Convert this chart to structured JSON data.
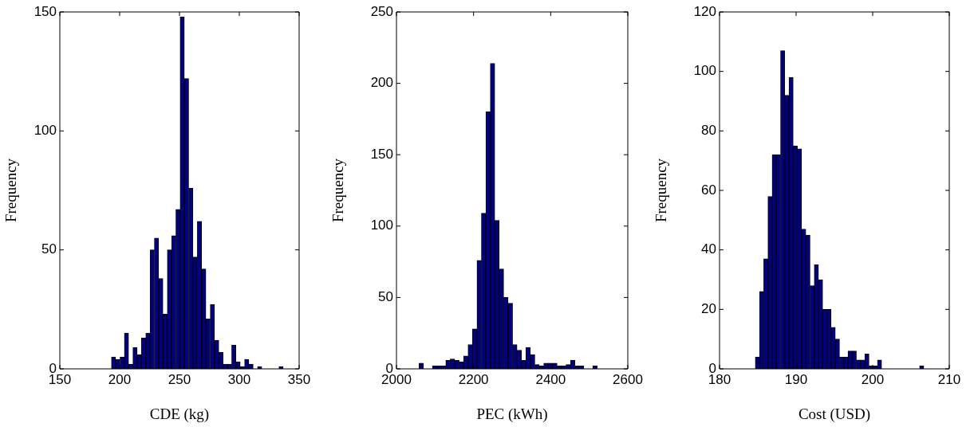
{
  "chart_data": [
    {
      "type": "histogram",
      "xlabel": "CDE (kg)",
      "ylabel": "Frequency",
      "color": "#000080",
      "xlim": [
        150,
        350
      ],
      "xticks": [
        150,
        200,
        250,
        300,
        350
      ],
      "ylim": [
        0,
        150
      ],
      "yticks": [
        0,
        50,
        100,
        150
      ],
      "bins": [
        193.1,
        196.7,
        200.3,
        203.9,
        207.5,
        211.1,
        214.6,
        218.2,
        221.8,
        225.4,
        229.0,
        232.6,
        236.2,
        239.8,
        243.4,
        247.0,
        250.5,
        254.1,
        257.7,
        261.3,
        264.9,
        268.5,
        272.1,
        275.7,
        279.3,
        282.9,
        286.4,
        290.0,
        293.6,
        297.2,
        300.8,
        304.4,
        308.0,
        311.6,
        315.2,
        318.8,
        322.3,
        325.9,
        329.5,
        333.1,
        336.7
      ],
      "values": [
        5,
        4,
        5,
        15,
        2,
        9,
        6,
        13,
        15,
        50,
        55,
        38,
        23,
        50,
        56,
        67,
        148,
        122,
        76,
        47,
        62,
        42,
        21,
        27,
        12,
        7,
        2,
        2,
        10,
        3,
        1,
        4,
        2,
        0,
        1,
        0,
        0,
        0,
        0,
        1
      ]
    },
    {
      "type": "histogram",
      "xlabel": "PEC (kWh)",
      "ylabel": "Frequency",
      "color": "#000080",
      "xlim": [
        2000,
        2600
      ],
      "xticks": [
        2000,
        2200,
        2400,
        2600
      ],
      "ylim": [
        0,
        250
      ],
      "yticks": [
        0,
        50,
        100,
        150,
        200,
        250
      ],
      "bins": [
        2058.6,
        2070.2,
        2081.7,
        2093.3,
        2104.8,
        2116.4,
        2127.9,
        2139.5,
        2151.0,
        2162.6,
        2174.1,
        2185.7,
        2197.2,
        2208.8,
        2220.3,
        2231.9,
        2243.4,
        2255.0,
        2266.5,
        2278.1,
        2289.6,
        2301.2,
        2312.7,
        2324.3,
        2335.8,
        2347.4,
        2358.9,
        2370.5,
        2382.0,
        2393.6,
        2405.1,
        2416.7,
        2428.2,
        2439.8,
        2451.3,
        2462.9,
        2474.4,
        2486.0,
        2497.5,
        2509.1,
        2520.6
      ],
      "values": [
        4,
        0,
        0,
        2,
        2,
        2,
        6,
        7,
        6,
        5,
        9,
        17,
        28,
        76,
        109,
        180,
        214,
        104,
        70,
        50,
        46,
        17,
        13,
        6,
        15,
        10,
        3,
        2,
        4,
        4,
        4,
        2,
        2,
        3,
        6,
        2,
        2,
        0,
        0,
        2
      ]
    },
    {
      "type": "histogram",
      "xlabel": "Cost (USD)",
      "ylabel": "Frequency",
      "color": "#000080",
      "xlim": [
        180,
        210
      ],
      "xticks": [
        180,
        190,
        200,
        210
      ],
      "ylim": [
        0,
        120
      ],
      "yticks": [
        0,
        20,
        40,
        60,
        80,
        100,
        120
      ],
      "bins": [
        184.67,
        185.22,
        185.77,
        186.32,
        186.87,
        187.42,
        187.97,
        188.52,
        189.07,
        189.62,
        190.17,
        190.72,
        191.27,
        191.82,
        192.37,
        192.92,
        193.47,
        194.02,
        194.57,
        195.12,
        195.67,
        196.22,
        196.77,
        197.32,
        197.87,
        198.42,
        198.97,
        199.52,
        200.07,
        200.62,
        201.17,
        201.72,
        202.27,
        202.82,
        203.37,
        203.92,
        204.47,
        205.02,
        205.57,
        206.12,
        206.67
      ],
      "values": [
        4,
        26,
        37,
        58,
        72,
        72,
        107,
        92,
        98,
        75,
        74,
        47,
        45,
        28,
        35,
        30,
        20,
        20,
        14,
        10,
        4,
        4,
        6,
        6,
        3,
        3,
        5,
        1,
        1,
        3,
        0,
        0,
        0,
        0,
        0,
        0,
        0,
        0,
        0,
        1
      ]
    }
  ]
}
